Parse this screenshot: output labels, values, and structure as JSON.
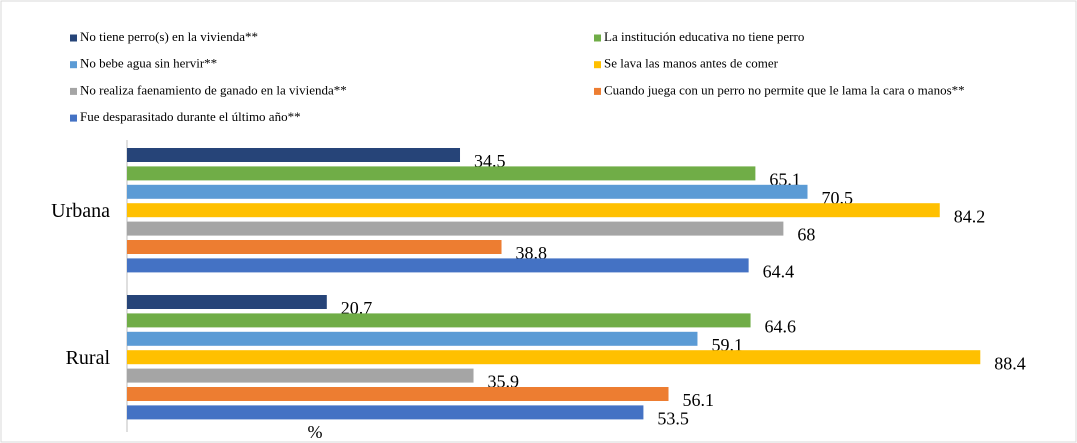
{
  "chart_data": {
    "type": "hbar",
    "x_label": "%",
    "categories": [
      "Urbana",
      "Rural"
    ],
    "series": [
      {
        "name": "No tiene perro(s) en la vivienda**",
        "color": "#264478",
        "values": [
          34.5,
          20.7
        ]
      },
      {
        "name": "La institución educativa no tiene perro",
        "color": "#70ad47",
        "values": [
          65.1,
          64.6
        ]
      },
      {
        "name": "No bebe agua sin hervir**",
        "color": "#5b9bd5",
        "values": [
          70.5,
          59.1
        ]
      },
      {
        "name": "Se lava las manos antes de comer",
        "color": "#ffc000",
        "values": [
          84.2,
          88.4
        ]
      },
      {
        "name": "No realiza faenamiento de ganado en la vivienda**",
        "color": "#a5a5a5",
        "values": [
          68,
          35.9
        ]
      },
      {
        "name": "Cuando juega con un perro no permite que le lama la cara o manos**",
        "color": "#ed7d31",
        "values": [
          38.8,
          56.1
        ]
      },
      {
        "name": "Fue desparasitado durante el último año**",
        "color": "#4472c4",
        "values": [
          64.4,
          53.5
        ]
      }
    ],
    "xlim": [
      0,
      95
    ],
    "legend": "top"
  }
}
